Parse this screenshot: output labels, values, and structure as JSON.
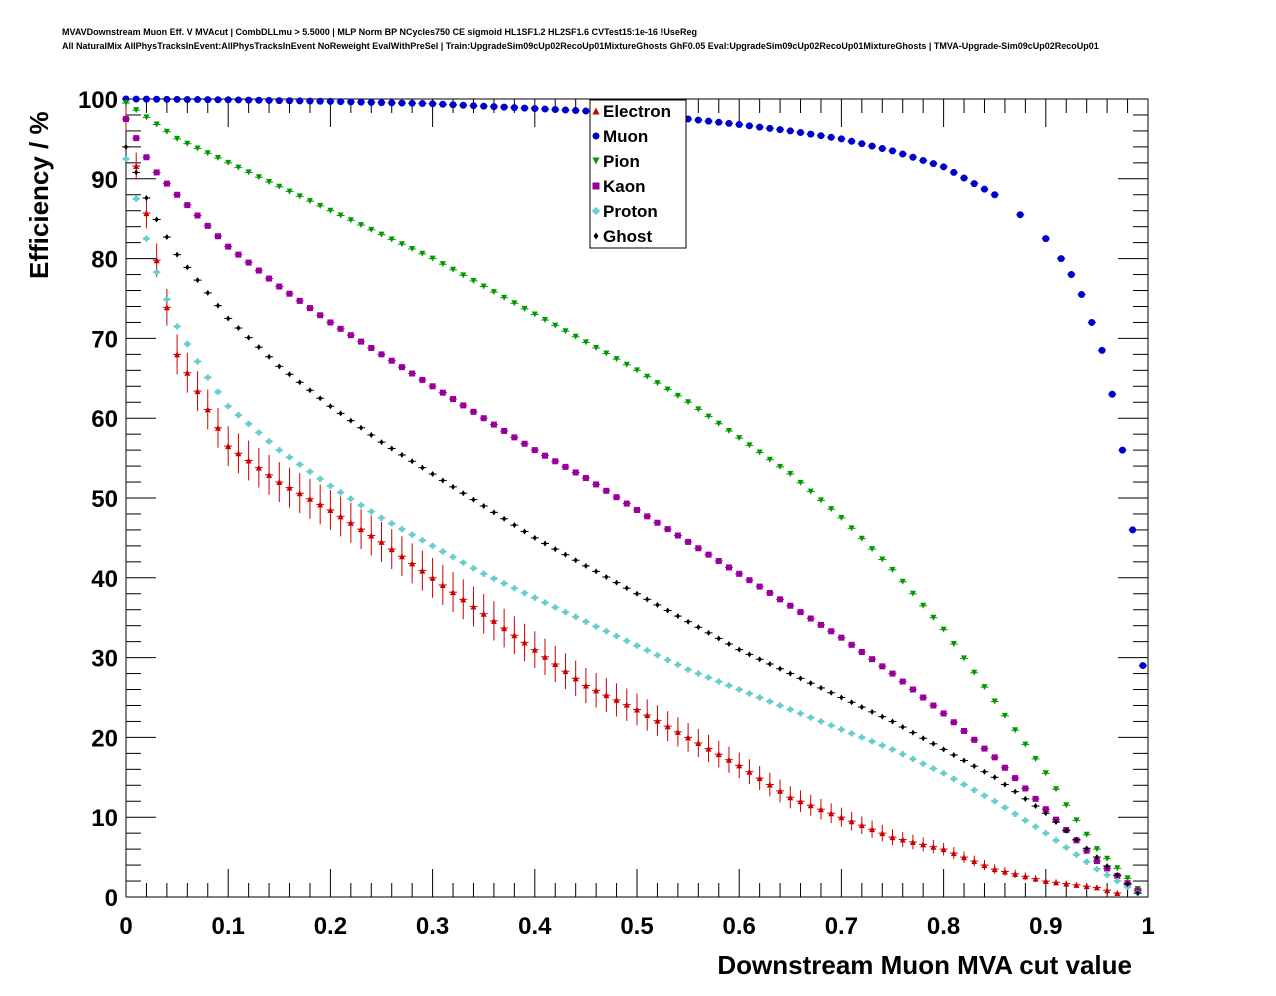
{
  "chart_data": {
    "type": "scatter",
    "title_line1": "MVAVDownstream Muon Eff. V MVAcut | CombDLLmu > 5.5000 | MLP Norm BP NCycles750 CE sigmoid HL1SF1.2 HL2SF1.6 CVTest15:1e-16 !UseReg",
    "title_line2": "All NaturalMix AllPhysTracksInEvent:AllPhysTracksInEvent NoReweight EvalWithPreSel | Train:UpgradeSim09cUp02RecoUp01MixtureGhosts GhF0.05 Eval:UpgradeSim09cUp02RecoUp01MixtureGhosts | TMVA-Upgrade-Sim09cUp02RecoUp01",
    "xlabel": "Downstream Muon MVA cut value",
    "ylabel": "Efficiency / %",
    "xlim": [
      0,
      1
    ],
    "ylim": [
      0,
      100
    ],
    "xticks": [
      "0",
      "0.1",
      "0.2",
      "0.3",
      "0.4",
      "0.5",
      "0.6",
      "0.7",
      "0.8",
      "0.9",
      "1"
    ],
    "yticks": [
      "0",
      "10",
      "20",
      "30",
      "40",
      "50",
      "60",
      "70",
      "80",
      "90",
      "100"
    ],
    "legend_position": "top-center",
    "grid": false,
    "series": [
      {
        "name": "Electron",
        "color": "#cc0000",
        "marker": "triangle-up",
        "x": [
          0.0,
          0.05,
          0.1,
          0.15,
          0.2,
          0.25,
          0.3,
          0.35,
          0.4,
          0.45,
          0.5,
          0.55,
          0.6,
          0.65,
          0.7,
          0.75,
          0.8,
          0.85,
          0.9,
          0.95,
          0.97
        ],
        "y": [
          97.5,
          68.0,
          56.5,
          52.0,
          48.5,
          44.5,
          40.0,
          35.5,
          31.0,
          26.5,
          23.5,
          20.0,
          16.5,
          12.5,
          10.0,
          7.5,
          6.0,
          3.5,
          2.0,
          1.2,
          0.5
        ],
        "err": [
          1.5,
          2.5,
          2.5,
          2.5,
          2.5,
          2.5,
          2.5,
          2.5,
          2.3,
          2.2,
          2.0,
          1.8,
          1.6,
          1.4,
          1.2,
          1.0,
          0.8,
          0.6,
          0.4,
          0.3,
          0.2
        ]
      },
      {
        "name": "Muon",
        "color": "#0000cc",
        "marker": "circle",
        "x": [
          0.0,
          0.1,
          0.2,
          0.3,
          0.4,
          0.45,
          0.5,
          0.55,
          0.6,
          0.65,
          0.7,
          0.75,
          0.8,
          0.85,
          0.875,
          0.9,
          0.915,
          0.925,
          0.935,
          0.945,
          0.955,
          0.965,
          0.975,
          0.985,
          0.995
        ],
        "y": [
          100.0,
          99.9,
          99.7,
          99.4,
          98.8,
          98.5,
          98.0,
          97.5,
          96.8,
          96.0,
          95.0,
          93.5,
          91.5,
          88.0,
          85.5,
          82.5,
          80.0,
          78.0,
          75.5,
          72.0,
          68.5,
          63.0,
          56.0,
          46.0,
          29.0
        ]
      },
      {
        "name": "Pion",
        "color": "#009900",
        "marker": "triangle-down",
        "x": [
          0.0,
          0.05,
          0.1,
          0.15,
          0.2,
          0.25,
          0.3,
          0.35,
          0.4,
          0.45,
          0.5,
          0.55,
          0.6,
          0.65,
          0.7,
          0.75,
          0.8,
          0.85,
          0.9,
          0.925,
          0.95,
          0.975,
          0.99
        ],
        "y": [
          99.5,
          95.0,
          92.0,
          89.0,
          86.0,
          83.0,
          80.0,
          76.5,
          73.0,
          69.5,
          66.0,
          62.0,
          57.5,
          53.0,
          47.5,
          41.0,
          33.5,
          24.5,
          15.5,
          10.5,
          6.0,
          3.0,
          1.0
        ]
      },
      {
        "name": "Kaon",
        "color": "#990099",
        "marker": "square",
        "x": [
          0.0,
          0.025,
          0.05,
          0.1,
          0.15,
          0.2,
          0.25,
          0.3,
          0.35,
          0.4,
          0.45,
          0.5,
          0.55,
          0.6,
          0.65,
          0.7,
          0.75,
          0.8,
          0.85,
          0.9,
          0.95,
          0.99
        ],
        "y": [
          97.5,
          91.5,
          88.0,
          81.5,
          76.5,
          72.0,
          68.0,
          64.0,
          60.0,
          56.0,
          52.5,
          48.5,
          44.5,
          40.5,
          36.5,
          32.5,
          28.0,
          23.0,
          17.5,
          11.0,
          4.5,
          0.8
        ]
      },
      {
        "name": "Proton",
        "color": "#66cccc",
        "marker": "cross",
        "x": [
          0.0,
          0.025,
          0.05,
          0.075,
          0.1,
          0.15,
          0.2,
          0.25,
          0.3,
          0.35,
          0.4,
          0.45,
          0.5,
          0.55,
          0.6,
          0.65,
          0.7,
          0.75,
          0.8,
          0.85,
          0.9,
          0.95,
          0.99
        ],
        "y": [
          92.5,
          80.0,
          71.5,
          66.0,
          61.5,
          56.0,
          51.5,
          47.5,
          44.0,
          40.5,
          37.5,
          34.5,
          31.5,
          28.5,
          26.0,
          23.5,
          21.0,
          18.5,
          15.5,
          12.0,
          8.0,
          3.5,
          0.5
        ]
      },
      {
        "name": "Ghost",
        "color": "#000000",
        "marker": "diamond",
        "x": [
          0.0,
          0.025,
          0.05,
          0.1,
          0.15,
          0.2,
          0.25,
          0.3,
          0.35,
          0.4,
          0.45,
          0.5,
          0.55,
          0.6,
          0.65,
          0.7,
          0.75,
          0.8,
          0.85,
          0.9,
          0.95,
          0.99
        ],
        "y": [
          94.0,
          86.0,
          80.5,
          72.5,
          66.5,
          61.5,
          57.0,
          53.0,
          49.0,
          45.0,
          41.5,
          38.0,
          34.5,
          31.0,
          28.0,
          25.0,
          22.0,
          18.5,
          15.0,
          10.5,
          5.0,
          0.5
        ]
      }
    ]
  }
}
